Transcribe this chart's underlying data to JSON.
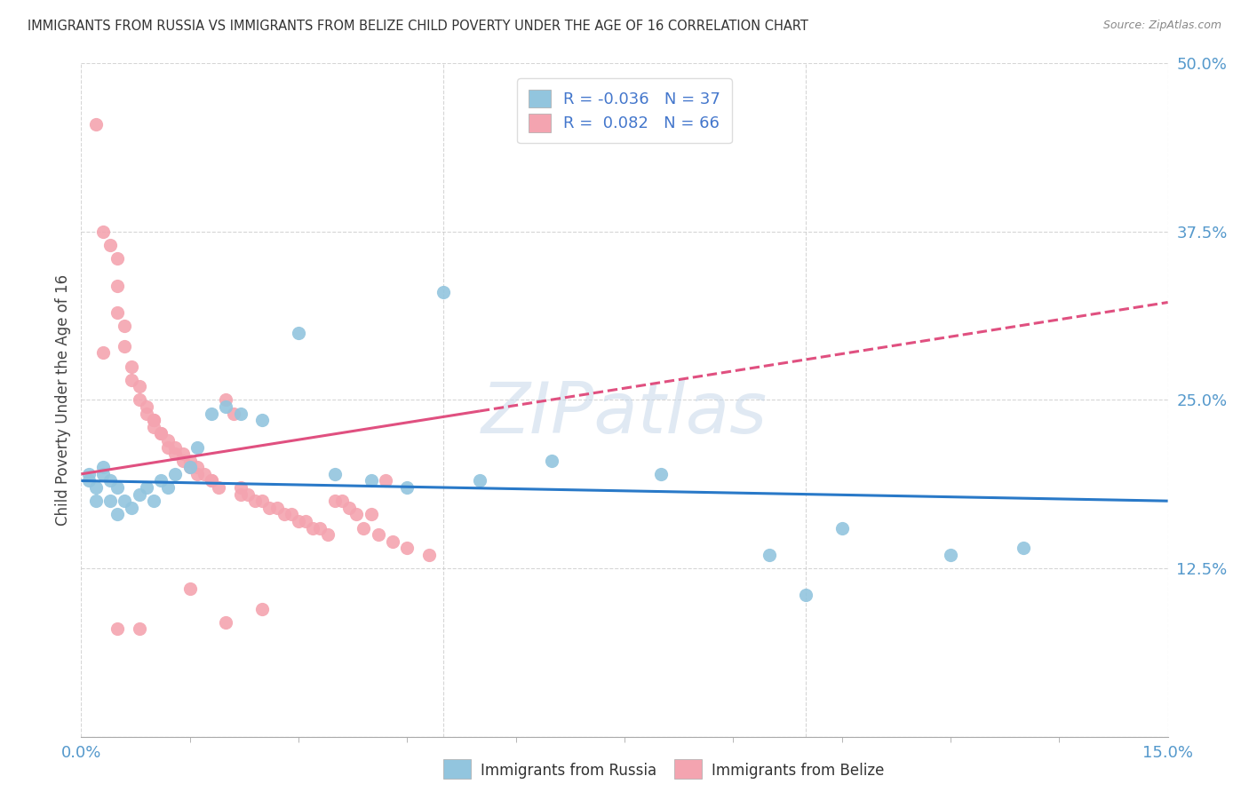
{
  "title": "IMMIGRANTS FROM RUSSIA VS IMMIGRANTS FROM BELIZE CHILD POVERTY UNDER THE AGE OF 16 CORRELATION CHART",
  "source": "Source: ZipAtlas.com",
  "ylabel": "Child Poverty Under the Age of 16",
  "x_min": 0.0,
  "x_max": 0.15,
  "y_min": 0.0,
  "y_max": 0.5,
  "russia_color": "#92C5DE",
  "belize_color": "#F4A4B0",
  "russia_line_color": "#2979C8",
  "belize_line_color": "#E05080",
  "russia_R": -0.036,
  "russia_N": 37,
  "belize_R": 0.082,
  "belize_N": 66,
  "legend_label_russia": "Immigrants from Russia",
  "legend_label_belize": "Immigrants from Belize",
  "watermark": "ZIPatlas",
  "russia_points": [
    [
      0.001,
      0.195
    ],
    [
      0.001,
      0.19
    ],
    [
      0.002,
      0.185
    ],
    [
      0.002,
      0.175
    ],
    [
      0.003,
      0.2
    ],
    [
      0.003,
      0.195
    ],
    [
      0.004,
      0.19
    ],
    [
      0.004,
      0.175
    ],
    [
      0.005,
      0.185
    ],
    [
      0.005,
      0.165
    ],
    [
      0.006,
      0.175
    ],
    [
      0.007,
      0.17
    ],
    [
      0.008,
      0.18
    ],
    [
      0.009,
      0.185
    ],
    [
      0.01,
      0.175
    ],
    [
      0.011,
      0.19
    ],
    [
      0.012,
      0.185
    ],
    [
      0.013,
      0.195
    ],
    [
      0.015,
      0.2
    ],
    [
      0.016,
      0.215
    ],
    [
      0.018,
      0.24
    ],
    [
      0.02,
      0.245
    ],
    [
      0.022,
      0.24
    ],
    [
      0.025,
      0.235
    ],
    [
      0.03,
      0.3
    ],
    [
      0.035,
      0.195
    ],
    [
      0.04,
      0.19
    ],
    [
      0.045,
      0.185
    ],
    [
      0.05,
      0.33
    ],
    [
      0.055,
      0.19
    ],
    [
      0.065,
      0.205
    ],
    [
      0.08,
      0.195
    ],
    [
      0.095,
      0.135
    ],
    [
      0.1,
      0.105
    ],
    [
      0.105,
      0.155
    ],
    [
      0.12,
      0.135
    ],
    [
      0.13,
      0.14
    ]
  ],
  "belize_points": [
    [
      0.002,
      0.455
    ],
    [
      0.003,
      0.375
    ],
    [
      0.004,
      0.365
    ],
    [
      0.005,
      0.355
    ],
    [
      0.005,
      0.335
    ],
    [
      0.005,
      0.315
    ],
    [
      0.006,
      0.305
    ],
    [
      0.006,
      0.29
    ],
    [
      0.007,
      0.275
    ],
    [
      0.007,
      0.265
    ],
    [
      0.008,
      0.26
    ],
    [
      0.008,
      0.25
    ],
    [
      0.009,
      0.245
    ],
    [
      0.009,
      0.24
    ],
    [
      0.01,
      0.235
    ],
    [
      0.01,
      0.235
    ],
    [
      0.01,
      0.23
    ],
    [
      0.011,
      0.225
    ],
    [
      0.011,
      0.225
    ],
    [
      0.012,
      0.22
    ],
    [
      0.012,
      0.215
    ],
    [
      0.013,
      0.215
    ],
    [
      0.013,
      0.21
    ],
    [
      0.014,
      0.21
    ],
    [
      0.014,
      0.205
    ],
    [
      0.015,
      0.205
    ],
    [
      0.015,
      0.2
    ],
    [
      0.016,
      0.2
    ],
    [
      0.016,
      0.195
    ],
    [
      0.017,
      0.195
    ],
    [
      0.018,
      0.19
    ],
    [
      0.018,
      0.19
    ],
    [
      0.019,
      0.185
    ],
    [
      0.02,
      0.25
    ],
    [
      0.021,
      0.24
    ],
    [
      0.022,
      0.185
    ],
    [
      0.022,
      0.18
    ],
    [
      0.023,
      0.18
    ],
    [
      0.024,
      0.175
    ],
    [
      0.025,
      0.175
    ],
    [
      0.026,
      0.17
    ],
    [
      0.027,
      0.17
    ],
    [
      0.028,
      0.165
    ],
    [
      0.029,
      0.165
    ],
    [
      0.03,
      0.16
    ],
    [
      0.031,
      0.16
    ],
    [
      0.032,
      0.155
    ],
    [
      0.033,
      0.155
    ],
    [
      0.034,
      0.15
    ],
    [
      0.035,
      0.175
    ],
    [
      0.036,
      0.175
    ],
    [
      0.037,
      0.17
    ],
    [
      0.038,
      0.165
    ],
    [
      0.039,
      0.155
    ],
    [
      0.04,
      0.165
    ],
    [
      0.041,
      0.15
    ],
    [
      0.042,
      0.19
    ],
    [
      0.043,
      0.145
    ],
    [
      0.045,
      0.14
    ],
    [
      0.048,
      0.135
    ],
    [
      0.008,
      0.08
    ],
    [
      0.015,
      0.11
    ],
    [
      0.02,
      0.085
    ],
    [
      0.025,
      0.095
    ],
    [
      0.003,
      0.285
    ],
    [
      0.005,
      0.08
    ]
  ]
}
